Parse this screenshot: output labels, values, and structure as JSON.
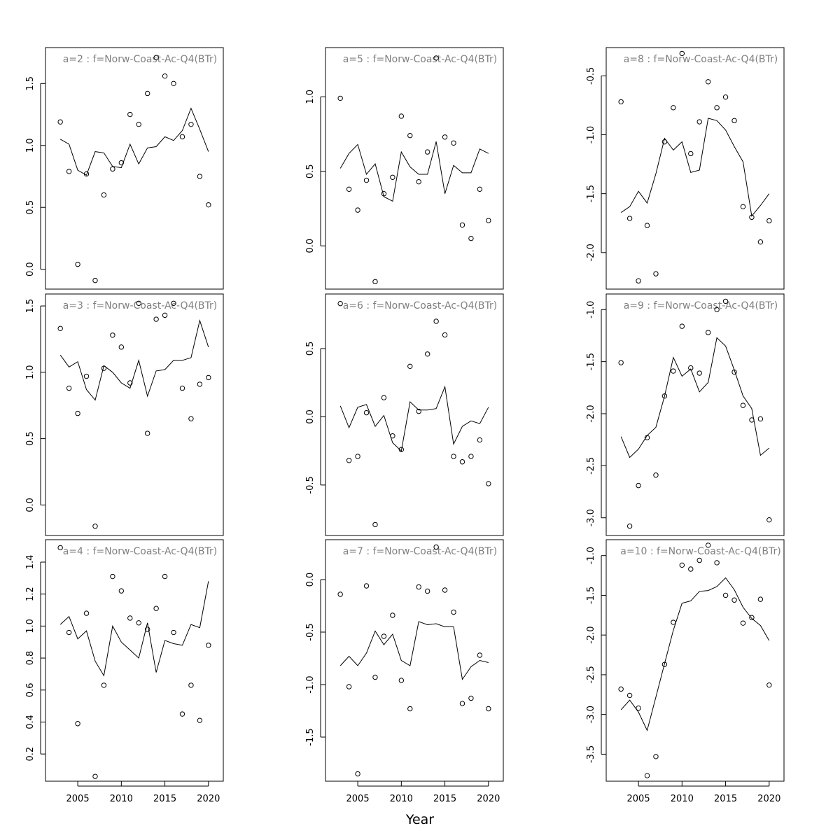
{
  "xlabel": "Year",
  "chart_data": [
    {
      "type": "scatter",
      "title": "a=2  :  f=Norw-Coast-Ac-Q4(BTr)",
      "x": [
        2003,
        2004,
        2005,
        2006,
        2007,
        2008,
        2009,
        2010,
        2011,
        2012,
        2013,
        2014,
        2015,
        2016,
        2017,
        2018,
        2019,
        2020
      ],
      "observed": [
        1.19,
        0.79,
        0.04,
        0.77,
        -0.09,
        0.6,
        0.81,
        0.86,
        1.25,
        1.17,
        1.42,
        1.71,
        1.56,
        1.5,
        1.07,
        1.17,
        0.75,
        0.52
      ],
      "fitted": [
        1.05,
        1.01,
        0.8,
        0.76,
        0.95,
        0.94,
        0.83,
        0.82,
        1.01,
        0.85,
        0.98,
        0.99,
        1.07,
        1.04,
        1.12,
        1.3,
        1.13,
        0.95
      ],
      "ylim": [
        -0.16,
        1.79
      ],
      "yticks": [
        0.0,
        0.5,
        1.0,
        1.5
      ],
      "xticks": [
        2005,
        2010,
        2015,
        2020
      ]
    },
    {
      "type": "scatter",
      "title": "a=5  :  f=Norw-Coast-Ac-Q4(BTr)",
      "x": [
        2003,
        2004,
        2005,
        2006,
        2007,
        2008,
        2009,
        2010,
        2011,
        2012,
        2013,
        2014,
        2015,
        2016,
        2017,
        2018,
        2019,
        2020
      ],
      "observed": [
        0.99,
        0.38,
        0.24,
        0.44,
        -0.24,
        0.35,
        0.46,
        0.87,
        0.74,
        0.43,
        0.63,
        1.26,
        0.73,
        0.69,
        0.14,
        0.05,
        0.38,
        0.17
      ],
      "fitted": [
        0.52,
        0.62,
        0.68,
        0.48,
        0.55,
        0.33,
        0.3,
        0.63,
        0.53,
        0.48,
        0.48,
        0.7,
        0.35,
        0.54,
        0.49,
        0.49,
        0.65,
        0.62
      ],
      "ylim": [
        -0.29,
        1.33
      ],
      "yticks": [
        0.0,
        0.5,
        1.0
      ],
      "xticks": [
        2005,
        2010,
        2015,
        2020
      ]
    },
    {
      "type": "scatter",
      "title": "a=8  :  f=Norw-Coast-Ac-Q4(BTr)",
      "x": [
        2003,
        2004,
        2005,
        2006,
        2007,
        2008,
        2009,
        2010,
        2011,
        2012,
        2013,
        2014,
        2015,
        2016,
        2017,
        2018,
        2019,
        2020
      ],
      "observed": [
        -0.72,
        -1.71,
        -2.24,
        -1.77,
        -2.18,
        -1.06,
        -0.77,
        -0.31,
        -1.16,
        -0.89,
        -0.55,
        -0.77,
        -0.68,
        -0.88,
        -1.61,
        -1.7,
        -1.91,
        -1.73
      ],
      "fitted": [
        -1.66,
        -1.61,
        -1.48,
        -1.58,
        -1.33,
        -1.03,
        -1.13,
        -1.06,
        -1.32,
        -1.3,
        -0.86,
        -0.88,
        -0.96,
        -1.1,
        -1.23,
        -1.69,
        -1.6,
        -1.5
      ],
      "ylim": [
        -2.31,
        -0.26
      ],
      "yticks": [
        -2.0,
        -1.5,
        -1.0,
        -0.5
      ],
      "xticks": [
        2005,
        2010,
        2015,
        2020
      ]
    },
    {
      "type": "scatter",
      "title": "a=3  :  f=Norw-Coast-Ac-Q4(BTr)",
      "x": [
        2003,
        2004,
        2005,
        2006,
        2007,
        2008,
        2009,
        2010,
        2011,
        2012,
        2013,
        2014,
        2015,
        2016,
        2017,
        2018,
        2019,
        2020
      ],
      "observed": [
        1.33,
        0.88,
        0.69,
        0.97,
        -0.16,
        1.03,
        1.28,
        1.19,
        0.92,
        1.52,
        0.54,
        1.4,
        1.43,
        1.52,
        0.88,
        0.65,
        0.91,
        0.96
      ],
      "fitted": [
        1.13,
        1.04,
        1.08,
        0.87,
        0.79,
        1.05,
        1.0,
        0.92,
        0.88,
        1.09,
        0.82,
        1.01,
        1.02,
        1.09,
        1.09,
        1.11,
        1.39,
        1.19
      ],
      "ylim": [
        -0.23,
        1.59
      ],
      "yticks": [
        0.0,
        0.5,
        1.0,
        1.5
      ],
      "xticks": [
        2005,
        2010,
        2015,
        2020
      ]
    },
    {
      "type": "scatter",
      "title": "a=6  :  f=Norw-Coast-Ac-Q4(BTr)",
      "x": [
        2003,
        2004,
        2005,
        2006,
        2007,
        2008,
        2009,
        2010,
        2011,
        2012,
        2013,
        2014,
        2015,
        2016,
        2017,
        2018,
        2019,
        2020
      ],
      "observed": [
        0.83,
        -0.32,
        -0.29,
        0.03,
        -0.79,
        0.14,
        -0.14,
        -0.24,
        0.37,
        0.04,
        0.46,
        0.7,
        0.6,
        -0.29,
        -0.33,
        -0.29,
        -0.17,
        -0.49
      ],
      "fitted": [
        0.08,
        -0.08,
        0.07,
        0.09,
        -0.07,
        0.01,
        -0.19,
        -0.25,
        0.11,
        0.05,
        0.05,
        0.06,
        0.22,
        -0.2,
        -0.07,
        -0.03,
        -0.05,
        0.07
      ],
      "ylim": [
        -0.87,
        0.9
      ],
      "yticks": [
        -0.5,
        0.0,
        0.5
      ],
      "xticks": [
        2005,
        2010,
        2015,
        2020
      ]
    },
    {
      "type": "scatter",
      "title": "a=9  :  f=Norw-Coast-Ac-Q4(BTr)",
      "x": [
        2003,
        2004,
        2005,
        2006,
        2007,
        2008,
        2009,
        2010,
        2011,
        2012,
        2013,
        2014,
        2015,
        2016,
        2017,
        2018,
        2019,
        2020
      ],
      "observed": [
        -1.51,
        -3.08,
        -2.69,
        -2.23,
        -2.59,
        -1.83,
        -1.59,
        -1.16,
        -1.56,
        -1.61,
        -1.22,
        -1.0,
        -0.92,
        -1.6,
        -1.92,
        -2.06,
        -2.05,
        -3.02
      ],
      "fitted": [
        -2.22,
        -2.42,
        -2.34,
        -2.21,
        -2.13,
        -1.83,
        -1.46,
        -1.64,
        -1.57,
        -1.79,
        -1.7,
        -1.27,
        -1.35,
        -1.58,
        -1.83,
        -1.95,
        -2.4,
        -2.33
      ],
      "ylim": [
        -3.17,
        -0.85
      ],
      "yticks": [
        -3.0,
        -2.5,
        -2.0,
        -1.5,
        -1.0
      ],
      "xticks": [
        2005,
        2010,
        2015,
        2020
      ]
    },
    {
      "type": "scatter",
      "title": "a=4  :  f=Norw-Coast-Ac-Q4(BTr)",
      "x": [
        2003,
        2004,
        2005,
        2006,
        2007,
        2008,
        2009,
        2010,
        2011,
        2012,
        2013,
        2014,
        2015,
        2016,
        2017,
        2018,
        2019,
        2020
      ],
      "observed": [
        1.49,
        0.96,
        0.39,
        1.08,
        0.06,
        0.63,
        1.31,
        1.22,
        1.05,
        1.02,
        0.98,
        1.11,
        1.31,
        0.96,
        0.45,
        0.63,
        0.41,
        0.88
      ],
      "fitted": [
        1.01,
        1.06,
        0.92,
        0.97,
        0.78,
        0.69,
        1.0,
        0.9,
        0.85,
        0.8,
        1.02,
        0.71,
        0.91,
        0.89,
        0.88,
        1.01,
        0.99,
        1.28
      ],
      "ylim": [
        0.03,
        1.54
      ],
      "yticks": [
        0.2,
        0.4,
        0.6,
        0.8,
        1.0,
        1.2,
        1.4
      ],
      "xticks": [
        2005,
        2010,
        2015,
        2020
      ]
    },
    {
      "type": "scatter",
      "title": "a=7  :  f=Norw-Coast-Ac-Q4(BTr)",
      "x": [
        2003,
        2004,
        2005,
        2006,
        2007,
        2008,
        2009,
        2010,
        2011,
        2012,
        2013,
        2014,
        2015,
        2016,
        2017,
        2018,
        2019,
        2020
      ],
      "observed": [
        -0.14,
        -1.02,
        -1.85,
        -0.06,
        -0.93,
        -0.54,
        -0.34,
        -0.96,
        -1.23,
        -0.07,
        -0.11,
        0.31,
        -0.1,
        -0.31,
        -1.18,
        -1.13,
        -0.72,
        -1.23
      ],
      "fitted": [
        -0.82,
        -0.73,
        -0.82,
        -0.7,
        -0.49,
        -0.62,
        -0.52,
        -0.77,
        -0.82,
        -0.4,
        -0.43,
        -0.42,
        -0.45,
        -0.45,
        -0.95,
        -0.83,
        -0.77,
        -0.79
      ],
      "ylim": [
        -1.92,
        0.38
      ],
      "yticks": [
        -1.5,
        -1.0,
        -0.5,
        0.0
      ],
      "xticks": [
        2005,
        2010,
        2015,
        2020
      ]
    },
    {
      "type": "scatter",
      "title": "a=10  :  f=Norw-Coast-Ac-Q4(BTr)",
      "x": [
        2003,
        2004,
        2005,
        2006,
        2007,
        2008,
        2009,
        2010,
        2011,
        2012,
        2013,
        2014,
        2015,
        2016,
        2017,
        2018,
        2019,
        2020
      ],
      "observed": [
        -2.68,
        -2.76,
        -2.92,
        -3.77,
        -3.53,
        -2.37,
        -1.84,
        -1.12,
        -1.17,
        -1.06,
        -0.87,
        -1.09,
        -1.5,
        -1.56,
        -1.85,
        -1.78,
        -1.55,
        -2.63
      ],
      "fitted": [
        -2.94,
        -2.82,
        -2.97,
        -3.2,
        -2.78,
        -2.36,
        -1.94,
        -1.6,
        -1.57,
        -1.45,
        -1.44,
        -1.39,
        -1.28,
        -1.43,
        -1.65,
        -1.79,
        -1.88,
        -2.07
      ],
      "ylim": [
        -3.84,
        -0.8
      ],
      "yticks": [
        -3.5,
        -3.0,
        -2.5,
        -2.0,
        -1.5,
        -1.0
      ],
      "xticks": [
        2005,
        2010,
        2015,
        2020
      ]
    }
  ]
}
